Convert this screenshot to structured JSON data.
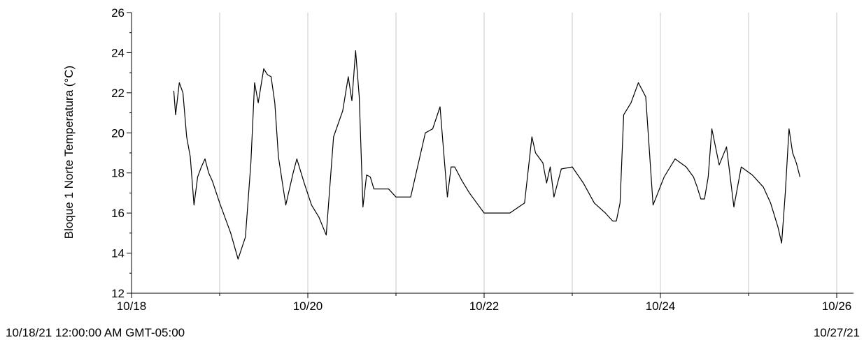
{
  "chart_data": {
    "type": "line",
    "ylabel": "Bloque 1 Norte Temperatura (°C)",
    "xlabel": "",
    "ylim": [
      12,
      26
    ],
    "yticks": [
      12,
      14,
      16,
      18,
      20,
      22,
      24,
      26
    ],
    "xlim": [
      "10/18/21",
      "10/26/21"
    ],
    "xtick_labels": [
      "10/18",
      "10/20",
      "10/22",
      "10/24",
      "10/26"
    ],
    "grid": "vertical",
    "series": [
      {
        "color": "#000000",
        "x": [
          "10/18/21 11:30",
          "10/18/21 12:00",
          "10/18/21 13:00",
          "10/18/21 14:00",
          "10/18/21 15:00",
          "10/18/21 16:00",
          "10/18/21 17:00",
          "10/18/21 18:00",
          "10/18/21 19:00",
          "10/18/21 20:00",
          "10/18/21 21:00",
          "10/18/21 22:00",
          "10/19/21 00:00",
          "10/19/21 03:00",
          "10/19/21 05:00",
          "10/19/21 07:00",
          "10/19/21 08:30",
          "10/19/21 09:30",
          "10/19/21 10:30",
          "10/19/21 12:00",
          "10/19/21 13:00",
          "10/19/21 14:00",
          "10/19/21 15:00",
          "10/19/21 16:00",
          "10/19/21 18:00",
          "10/19/21 20:00",
          "10/19/21 21:00",
          "10/19/21 23:00",
          "10/20/21 01:00",
          "10/20/21 03:00",
          "10/20/21 05:00",
          "10/20/21 07:00",
          "10/20/21 09:30",
          "10/20/21 11:00",
          "10/20/21 12:00",
          "10/20/21 13:00",
          "10/20/21 14:00",
          "10/20/21 15:00",
          "10/20/21 16:00",
          "10/20/21 17:00",
          "10/20/21 18:00",
          "10/20/21 20:00",
          "10/20/21 22:00",
          "10/21/21 00:00",
          "10/21/21 04:00",
          "10/21/21 08:00",
          "10/21/21 10:00",
          "10/21/21 12:00",
          "10/21/21 13:00",
          "10/21/21 14:00",
          "10/21/21 15:00",
          "10/21/21 16:00",
          "10/21/21 18:00",
          "10/21/21 20:00",
          "10/21/21 22:00",
          "10/22/21 00:00",
          "10/22/21 03:00",
          "10/22/21 07:00",
          "10/22/21 11:00",
          "10/22/21 13:00",
          "10/22/21 14:00",
          "10/22/21 16:00",
          "10/22/21 17:00",
          "10/22/21 18:00",
          "10/22/21 19:00",
          "10/22/21 21:00",
          "10/23/21 00:00",
          "10/23/21 03:00",
          "10/23/21 06:00",
          "10/23/21 09:00",
          "10/23/21 11:00",
          "10/23/21 12:00",
          "10/23/21 13:00",
          "10/23/21 14:00",
          "10/23/21 16:00",
          "10/23/21 18:00",
          "10/23/21 20:00",
          "10/23/21 22:00",
          "10/24/21 01:00",
          "10/24/21 04:00",
          "10/24/21 07:00",
          "10/24/21 09:00",
          "10/24/21 10:00",
          "10/24/21 11:00",
          "10/24/21 12:00",
          "10/24/21 13:00",
          "10/24/21 14:00",
          "10/24/21 16:00",
          "10/24/21 18:00",
          "10/24/21 20:00",
          "10/24/21 22:00",
          "10/25/21 01:00",
          "10/25/21 04:00",
          "10/25/21 06:00",
          "10/25/21 08:00",
          "10/25/21 09:00",
          "10/25/21 10:00",
          "10/25/21 11:00",
          "10/25/21 12:00",
          "10/25/21 13:00",
          "10/25/21 14:00"
        ],
        "y": [
          22.1,
          20.9,
          22.5,
          22.0,
          19.8,
          18.8,
          16.4,
          17.8,
          18.3,
          18.7,
          18.0,
          17.6,
          16.5,
          15.0,
          13.7,
          14.8,
          18.5,
          22.5,
          21.5,
          23.2,
          22.9,
          22.8,
          21.5,
          18.8,
          16.4,
          18.0,
          18.7,
          17.5,
          16.4,
          15.8,
          14.9,
          19.8,
          21.1,
          22.8,
          21.6,
          24.1,
          21.8,
          16.3,
          17.9,
          17.8,
          17.2,
          17.2,
          17.2,
          16.8,
          16.8,
          20.0,
          20.2,
          21.3,
          19.0,
          16.8,
          18.3,
          18.3,
          17.6,
          17.0,
          16.5,
          16.0,
          16.0,
          16.0,
          16.5,
          19.8,
          19.0,
          18.5,
          17.5,
          18.3,
          16.8,
          18.2,
          18.3,
          17.5,
          16.5,
          16.0,
          15.6,
          15.6,
          16.5,
          20.9,
          21.5,
          22.5,
          21.8,
          16.4,
          17.8,
          18.7,
          18.3,
          17.8,
          17.3,
          16.7,
          16.7,
          17.8,
          20.2,
          18.4,
          19.3,
          16.3,
          18.3,
          17.9,
          17.3,
          16.5,
          15.3,
          14.5,
          17.0,
          20.2,
          19.0,
          18.5,
          17.8
        ]
      }
    ]
  },
  "footer": {
    "left": "10/18/21 12:00:00 AM GMT-05:00",
    "right": "10/27/21"
  }
}
